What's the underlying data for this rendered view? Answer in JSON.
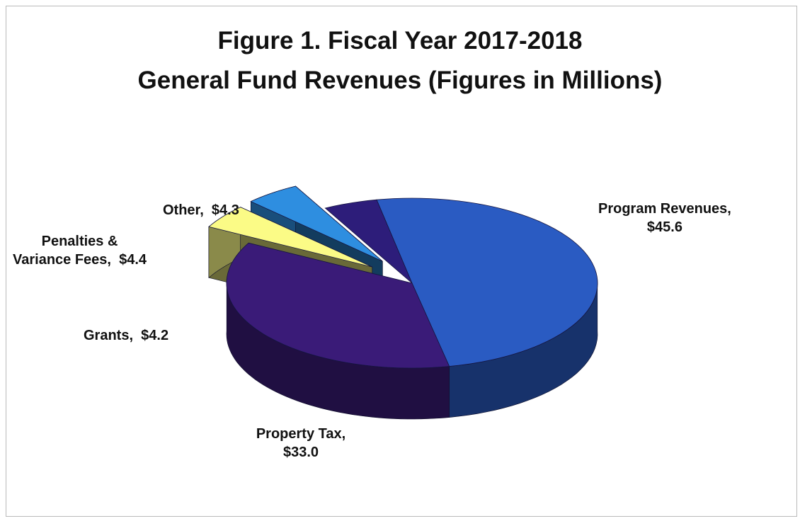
{
  "chart_data": {
    "type": "pie",
    "title": "Figure 1. Fiscal Year 2017-2018",
    "subtitle": "General Fund Revenues (Figures in Millions)",
    "slices": [
      {
        "label": "Program Revenues,",
        "value_label": "$45.6",
        "value": 45.6,
        "color": "#2a5bc2",
        "exploded": false
      },
      {
        "label": "Property Tax,",
        "value_label": "$33.0",
        "value": 33.0,
        "color": "#3a1b78",
        "exploded": false
      },
      {
        "label": "Grants,",
        "value_label": "$4.2",
        "value": 4.2,
        "color": "#fbfb86",
        "exploded": true
      },
      {
        "label": "Penalties &",
        "label2": "Variance Fees,",
        "value_label": "$4.4",
        "value": 4.4,
        "color": "#2e8ee0",
        "exploded": true
      },
      {
        "label": "Other,",
        "value_label": "$4.3",
        "value": 4.3,
        "color": "#2d1d7a",
        "exploded": false
      }
    ],
    "legend": "none",
    "style": "3d-exploded"
  }
}
